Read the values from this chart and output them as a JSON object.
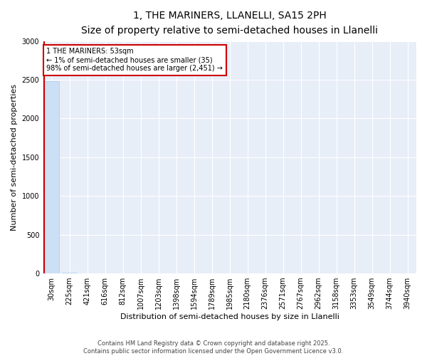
{
  "title": "1, THE MARINERS, LLANELLI, SA15 2PH",
  "subtitle": "Size of property relative to semi-detached houses in Llanelli",
  "xlabel": "Distribution of semi-detached houses by size in Llanelli",
  "ylabel": "Number of semi-detached properties",
  "bar_color": "#cce0f5",
  "bar_edge_color": "#aaccee",
  "highlight_color": "#cc0000",
  "annotation_box_color": "#cc0000",
  "background_color": "#e8eef8",
  "categories": [
    "30sqm",
    "225sqm",
    "421sqm",
    "616sqm",
    "812sqm",
    "1007sqm",
    "1203sqm",
    "1398sqm",
    "1594sqm",
    "1789sqm",
    "1985sqm",
    "2180sqm",
    "2376sqm",
    "2571sqm",
    "2767sqm",
    "2962sqm",
    "3158sqm",
    "3353sqm",
    "3549sqm",
    "3744sqm",
    "3940sqm"
  ],
  "values": [
    2480,
    6,
    0,
    0,
    0,
    0,
    0,
    0,
    0,
    0,
    0,
    0,
    0,
    0,
    0,
    0,
    0,
    0,
    0,
    0,
    0
  ],
  "ylim": [
    0,
    3000
  ],
  "yticks": [
    0,
    500,
    1000,
    1500,
    2000,
    2500,
    3000
  ],
  "annotation_line1": "1 THE MARINERS: 53sqm",
  "annotation_line2": "← 1% of semi-detached houses are smaller (35)",
  "annotation_line3": "98% of semi-detached houses are larger (2,451) →",
  "footer_line1": "Contains HM Land Registry data © Crown copyright and database right 2025.",
  "footer_line2": "Contains public sector information licensed under the Open Government Licence v3.0.",
  "property_bar_index": 0,
  "title_fontsize": 10,
  "subtitle_fontsize": 9,
  "axis_label_fontsize": 8,
  "tick_fontsize": 7,
  "annotation_fontsize": 7,
  "footer_fontsize": 6
}
